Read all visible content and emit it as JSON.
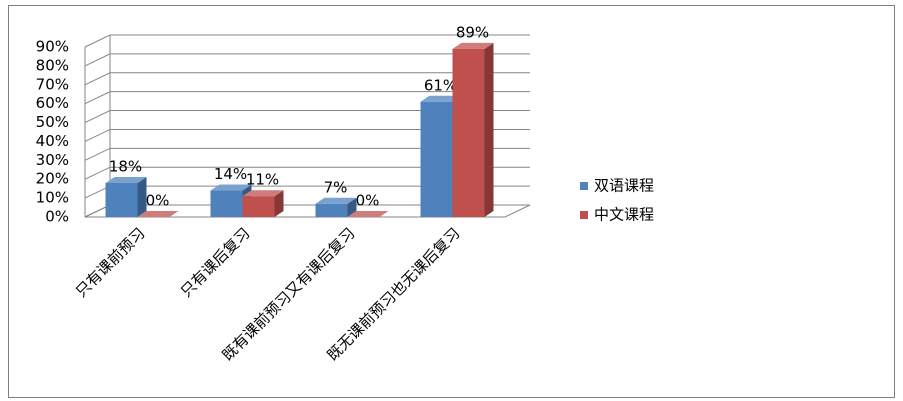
{
  "chart_data": {
    "type": "bar3d",
    "categories": [
      "只有课前预习",
      "只有课后复习",
      "既有课前预习又有课后复习",
      "既无课前预习也无课后复习"
    ],
    "series": [
      {
        "name": "双语课程",
        "color": "#4f81bd",
        "values": [
          18,
          14,
          7,
          61
        ],
        "value_labels": [
          "18%",
          "14%",
          "7%",
          "61%"
        ]
      },
      {
        "name": "中文课程",
        "color": "#c0504d",
        "values": [
          0,
          11,
          0,
          89
        ],
        "value_labels": [
          "0%",
          "11%",
          "0%",
          "89%"
        ]
      }
    ],
    "ylim": [
      0,
      90
    ],
    "yticks": [
      {
        "value": 0,
        "label": "0%"
      },
      {
        "value": 10,
        "label": "10%"
      },
      {
        "value": 20,
        "label": "20%"
      },
      {
        "value": 30,
        "label": "30%"
      },
      {
        "value": 40,
        "label": "40%"
      },
      {
        "value": 50,
        "label": "50%"
      },
      {
        "value": 60,
        "label": "60%"
      },
      {
        "value": 70,
        "label": "70%"
      },
      {
        "value": 80,
        "label": "80%"
      },
      {
        "value": 90,
        "label": "90%"
      }
    ],
    "grid": true
  }
}
